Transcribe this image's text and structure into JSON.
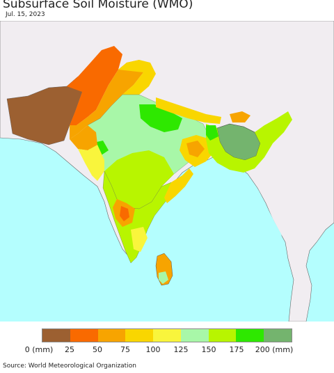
{
  "header": {
    "title": "Subsurface Soil Moisture (WMO)",
    "date": "Jul. 15, 2023"
  },
  "legend": {
    "colors": [
      "#9c6031",
      "#f96a00",
      "#f7a400",
      "#f9d600",
      "#f9f53c",
      "#a8f7a8",
      "#b8f500",
      "#2ee800",
      "#74b46e"
    ],
    "labels": [
      "0 (mm)",
      "25",
      "50",
      "75",
      "100",
      "125",
      "150",
      "175",
      "200 (mm)"
    ]
  },
  "map": {
    "colors": {
      "ocean": "#b4fefe",
      "outside_land": "#f1edf1",
      "very_dry": "#9c6031",
      "dry": "#f96a00",
      "orange": "#f7a400",
      "gold": "#f9d600",
      "yellow": "#f9f53c",
      "pale_green": "#a8f7a8",
      "lime": "#b8f500",
      "green": "#2ee800",
      "wet_gray": "#74b46e"
    }
  },
  "footer": {
    "source": "Source: World Meteorological Organization"
  }
}
